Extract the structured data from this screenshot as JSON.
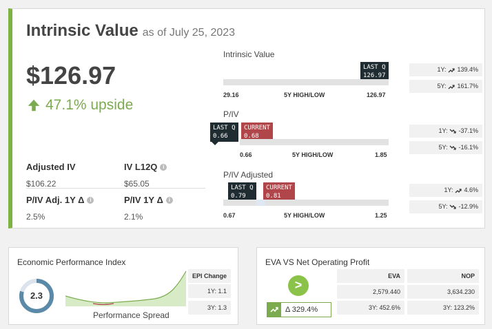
{
  "intrinsic": {
    "title": "Intrinsic Value",
    "as_of": "as of July 25, 2023",
    "value": "$126.97",
    "upside": "47.1% upside",
    "adjusted_iv_label": "Adjusted IV",
    "adjusted_iv_value": "$106.22",
    "iv_l12q_label": "IV L12Q",
    "iv_l12q_value": "$65.05",
    "piv_adj_label": "P/IV Adj. 1Y Δ",
    "piv_adj_value": "2.5%",
    "piv_1y_label": "P/IV 1Y Δ",
    "piv_1y_value": "2.1%"
  },
  "ranges": {
    "iv": {
      "label": "Intrinsic Value",
      "low": "29.16",
      "mid": "5Y HIGH/LOW",
      "high": "126.97",
      "tip_last": "LAST Q\n126.97",
      "changes": {
        "y1": "1Y: 139.4%",
        "y5": "5Y: 161.7%"
      }
    },
    "piv": {
      "label": "P/IV",
      "low": "0.66",
      "mid": "5Y HIGH/LOW",
      "high": "1.85",
      "tip_last": "LAST Q\n0.66",
      "tip_current": "CURRENT\n0.68",
      "changes": {
        "y1": "1Y: -37.1%",
        "y5": "5Y: -16.1%"
      }
    },
    "piv_adj": {
      "label": "P/IV Adjusted",
      "low": "0.67",
      "mid": "5Y HIGH/LOW",
      "high": "1.25",
      "tip_last": "LAST Q\n0.79",
      "tip_current": "CURRENT\n0.81",
      "changes": {
        "y1": "1Y: 4.6%",
        "y5": "5Y: -12.9%"
      }
    }
  },
  "epi": {
    "title": "Economic Performance Index",
    "value": "2.3",
    "spark_label": "Performance Spread",
    "col_header": "EPI Change",
    "y1": "1Y: 1.1",
    "y3": "3Y: 1.3"
  },
  "eva": {
    "title": "EVA VS Net Operating Profit",
    "go_symbol": ">",
    "delta": "Δ 329.4%",
    "eva_header": "EVA",
    "nop_header": "NOP",
    "eva_value": "2,579.440",
    "nop_value": "3,634.230",
    "eva_change": "3Y: 452.6%",
    "nop_change": "3Y: 123.2%"
  },
  "colors": {
    "accent": "#7cb342",
    "dark_tip": "#1f2c31",
    "red_tip": "#b0464a",
    "gauge": "#5b8aa8"
  }
}
